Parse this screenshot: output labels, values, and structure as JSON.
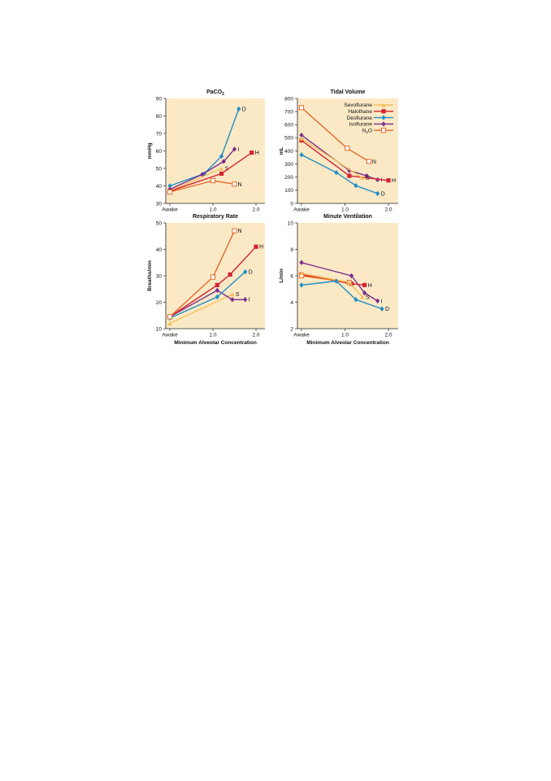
{
  "chart_data": [
    {
      "type": "line",
      "title": "PaCO",
      "title_sub": "2",
      "ylabel": "mmHg",
      "xlabel": "",
      "ylim": [
        30,
        90
      ],
      "yticks": [
        30,
        40,
        50,
        60,
        70,
        80,
        90
      ],
      "xlim": [
        0,
        2.2
      ],
      "xticks": [
        {
          "v": 0,
          "label": "Awake"
        },
        {
          "v": 1.0,
          "label": "1.0"
        },
        {
          "v": 2.0,
          "label": "2.0"
        }
      ],
      "grid": false,
      "background": "#fbe9c6",
      "series": [
        {
          "key": "D",
          "color": "#1e8fc6",
          "marker": "diamond",
          "label": "D",
          "points": [
            [
              0,
              40
            ],
            [
              0.8,
              47
            ],
            [
              1.2,
              57
            ],
            [
              1.6,
              84
            ]
          ]
        },
        {
          "key": "I",
          "color": "#7b2d8e",
          "marker": "diamond",
          "label": "I",
          "points": [
            [
              0,
              38
            ],
            [
              0.75,
              46.5
            ],
            [
              1.25,
              54
            ],
            [
              1.5,
              61
            ]
          ]
        },
        {
          "key": "S",
          "color": "#f5c05a",
          "marker": "triangle",
          "label": "S",
          "points": [
            [
              0,
              37
            ],
            [
              1.2,
              50
            ]
          ]
        },
        {
          "key": "H",
          "color": "#d42330",
          "marker": "square",
          "label": "H",
          "points": [
            [
              0,
              37
            ],
            [
              1.2,
              47
            ],
            [
              1.9,
              59
            ]
          ]
        },
        {
          "key": "N",
          "color": "#e36b2c",
          "marker": "open-square",
          "label": "N",
          "points": [
            [
              0,
              36.5
            ],
            [
              1.0,
              43
            ],
            [
              1.5,
              41
            ]
          ]
        }
      ]
    },
    {
      "type": "line",
      "title": "Tidal Volume",
      "ylabel": "mL",
      "xlabel": "",
      "ylim": [
        0,
        800
      ],
      "yticks": [
        0,
        100,
        200,
        300,
        400,
        500,
        600,
        700,
        800
      ],
      "xlim": [
        0,
        2.2
      ],
      "xticks": [
        {
          "v": 0,
          "label": "Awake"
        },
        {
          "v": 1.0,
          "label": "1.0"
        },
        {
          "v": 2.0,
          "label": "2.0"
        }
      ],
      "grid": false,
      "background": "#fbe9c6",
      "legend": {
        "position": "top-right",
        "entries": [
          {
            "key": "S",
            "label": "Sevoflurane"
          },
          {
            "key": "H",
            "label": "Halothane"
          },
          {
            "key": "D",
            "label": "Desflurane"
          },
          {
            "key": "I",
            "label": "Isoflurane"
          },
          {
            "key": "N",
            "label": "N",
            "label_sub": "2",
            "label_tail": "O"
          }
        ]
      },
      "series": [
        {
          "key": "N",
          "color": "#e36b2c",
          "marker": "open-square",
          "label": "N",
          "points": [
            [
              0,
              730
            ],
            [
              1.05,
              420
            ],
            [
              1.55,
              320
            ]
          ]
        },
        {
          "key": "I",
          "color": "#7b2d8e",
          "marker": "diamond",
          "label": "I",
          "points": [
            [
              0,
              520
            ],
            [
              1.1,
              250
            ],
            [
              1.5,
              210
            ],
            [
              1.75,
              180
            ]
          ]
        },
        {
          "key": "H",
          "color": "#d42330",
          "marker": "square",
          "label": "H",
          "points": [
            [
              0,
              480
            ],
            [
              1.1,
              210
            ],
            [
              2.0,
              175
            ]
          ]
        },
        {
          "key": "S",
          "color": "#f5c05a",
          "marker": "triangle",
          "label": "S",
          "points": [
            [
              0,
              495
            ],
            [
              1.4,
              195
            ]
          ]
        },
        {
          "key": "D",
          "color": "#1e8fc6",
          "marker": "diamond",
          "label": "D",
          "points": [
            [
              0,
              370
            ],
            [
              0.8,
              235
            ],
            [
              1.25,
              135
            ],
            [
              1.75,
              75
            ]
          ]
        }
      ]
    },
    {
      "type": "line",
      "title": "Respiratory Rate",
      "ylabel": "Breaths/min",
      "xlabel": "Minimum Alveolar Concentration",
      "ylim": [
        10,
        50
      ],
      "yticks": [
        10,
        20,
        30,
        40,
        50
      ],
      "xlim": [
        0,
        2.2
      ],
      "xticks": [
        {
          "v": 0,
          "label": "Awake"
        },
        {
          "v": 1.0,
          "label": "1.0"
        },
        {
          "v": 2.0,
          "label": "2.0"
        }
      ],
      "grid": false,
      "background": "#fbe9c6",
      "series": [
        {
          "key": "S",
          "color": "#f5c05a",
          "marker": "triangle",
          "label": "S",
          "points": [
            [
              0,
              12
            ],
            [
              1.45,
              23
            ]
          ]
        },
        {
          "key": "I",
          "color": "#7b2d8e",
          "marker": "diamond",
          "label": "I",
          "points": [
            [
              0,
              14.5
            ],
            [
              1.1,
              24.5
            ],
            [
              1.45,
              21
            ],
            [
              1.75,
              21
            ]
          ]
        },
        {
          "key": "D",
          "color": "#1e8fc6",
          "marker": "diamond",
          "label": "D",
          "points": [
            [
              0,
              14
            ],
            [
              1.1,
              22
            ],
            [
              1.75,
              31.5
            ]
          ]
        },
        {
          "key": "H",
          "color": "#d42330",
          "marker": "square",
          "label": "H",
          "points": [
            [
              0,
              14.5
            ],
            [
              1.1,
              26.5
            ],
            [
              1.4,
              30.5
            ],
            [
              2.0,
              41
            ]
          ]
        },
        {
          "key": "N",
          "color": "#e36b2c",
          "marker": "open-square",
          "label": "N",
          "points": [
            [
              0,
              14.5
            ],
            [
              1.0,
              29.5
            ],
            [
              1.5,
              47
            ]
          ]
        }
      ]
    },
    {
      "type": "line",
      "title": "Minute Ventilation",
      "ylabel": "L/min",
      "xlabel": "Minimum Alveolar Concentration",
      "ylim": [
        2,
        10
      ],
      "yticks": [
        2,
        4,
        6,
        8,
        10
      ],
      "xlim": [
        0,
        2.2
      ],
      "xticks": [
        {
          "v": 0,
          "label": "Awake"
        },
        {
          "v": 1.0,
          "label": "1.0"
        },
        {
          "v": 2.0,
          "label": "2.0"
        }
      ],
      "grid": false,
      "background": "#fbe9c6",
      "series": [
        {
          "key": "I",
          "color": "#7b2d8e",
          "marker": "diamond",
          "label": "I",
          "points": [
            [
              0,
              7
            ],
            [
              1.15,
              6
            ],
            [
              1.45,
              4.7
            ],
            [
              1.75,
              4.1
            ]
          ]
        },
        {
          "key": "H",
          "color": "#d42330",
          "marker": "square",
          "label": "H",
          "points": [
            [
              0,
              6.1
            ],
            [
              1.15,
              5.4
            ],
            [
              1.45,
              5.3
            ]
          ]
        },
        {
          "key": "N",
          "color": "#e36b2c",
          "marker": "open-square",
          "label": "",
          "points": [
            [
              0,
              6
            ],
            [
              1.1,
              5.5
            ]
          ]
        },
        {
          "key": "S",
          "color": "#f5c05a",
          "marker": "triangle",
          "label": "S",
          "points": [
            [
              0,
              6.2
            ],
            [
              1.1,
              5.5
            ],
            [
              1.4,
              4.4
            ]
          ]
        },
        {
          "key": "D",
          "color": "#1e8fc6",
          "marker": "diamond",
          "label": "D",
          "points": [
            [
              0,
              5.3
            ],
            [
              0.8,
              5.6
            ],
            [
              1.25,
              4.2
            ],
            [
              1.85,
              3.5
            ]
          ]
        }
      ]
    }
  ]
}
